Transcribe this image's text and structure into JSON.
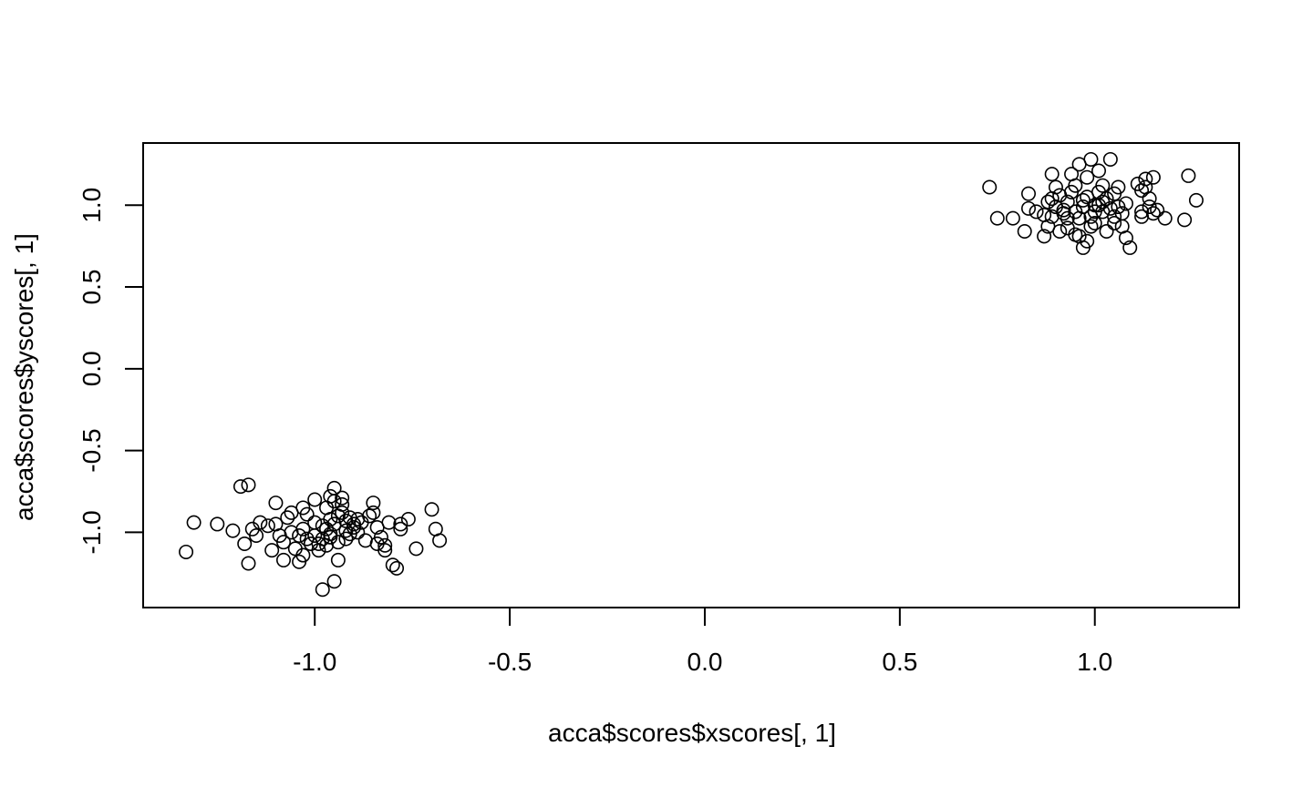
{
  "chart_data": {
    "type": "scatter",
    "title": "",
    "xlabel": "acca$scores$xscores[, 1]",
    "ylabel": "acca$scores$yscores[, 1]",
    "xlim": [
      -1.44,
      1.37
    ],
    "ylim": [
      -1.46,
      1.38
    ],
    "xticks": [
      -1.0,
      -0.5,
      0.0,
      0.5,
      1.0
    ],
    "xtick_labels": [
      "-1.0",
      "-0.5",
      "0.0",
      "0.5",
      "1.0"
    ],
    "yticks": [
      -1.0,
      -0.5,
      0.0,
      0.5,
      1.0
    ],
    "ytick_labels": [
      "-1.0",
      "-0.5",
      "0.0",
      "0.5",
      "1.0"
    ],
    "grid": false,
    "legend": "none",
    "marker": "open-circle",
    "color": "#000000",
    "series": [
      {
        "points": [
          [
            -1.33,
            -1.12
          ],
          [
            -1.31,
            -0.94
          ],
          [
            -1.25,
            -0.95
          ],
          [
            -1.21,
            -0.99
          ],
          [
            -1.19,
            -0.72
          ],
          [
            -1.17,
            -0.71
          ],
          [
            -1.18,
            -1.07
          ],
          [
            -1.17,
            -1.19
          ],
          [
            -1.16,
            -0.98
          ],
          [
            -1.14,
            -0.94
          ],
          [
            -1.15,
            -1.02
          ],
          [
            -1.12,
            -0.96
          ],
          [
            -1.11,
            -1.11
          ],
          [
            -1.1,
            -0.82
          ],
          [
            -1.1,
            -0.95
          ],
          [
            -1.09,
            -1.02
          ],
          [
            -1.08,
            -1.06
          ],
          [
            -1.08,
            -1.17
          ],
          [
            -1.07,
            -0.91
          ],
          [
            -1.06,
            -1.0
          ],
          [
            -1.06,
            -0.88
          ],
          [
            -1.05,
            -1.1
          ],
          [
            -1.04,
            -1.18
          ],
          [
            -1.03,
            -0.85
          ],
          [
            -1.03,
            -0.98
          ],
          [
            -1.02,
            -1.04
          ],
          [
            -1.03,
            -1.14
          ],
          [
            -1.02,
            -0.89
          ],
          [
            -1.01,
            -1.07
          ],
          [
            -1.0,
            -0.8
          ],
          [
            -1.0,
            -0.94
          ],
          [
            -1.0,
            -1.02
          ],
          [
            -0.99,
            -1.07
          ],
          [
            -0.99,
            -1.11
          ],
          [
            -0.98,
            -1.04
          ],
          [
            -0.98,
            -1.35
          ],
          [
            -0.97,
            -0.85
          ],
          [
            -0.97,
            -0.98
          ],
          [
            -0.97,
            -1.08
          ],
          [
            -0.96,
            -0.78
          ],
          [
            -0.96,
            -0.92
          ],
          [
            -0.96,
            -1.03
          ],
          [
            -0.95,
            -0.73
          ],
          [
            -0.95,
            -0.81
          ],
          [
            -0.95,
            -0.95
          ],
          [
            -0.95,
            -1.3
          ],
          [
            -0.94,
            -1.06
          ],
          [
            -0.94,
            -1.17
          ],
          [
            -0.93,
            -0.83
          ],
          [
            -0.93,
            -0.88
          ],
          [
            -0.93,
            -0.79
          ],
          [
            -0.92,
            -0.99
          ],
          [
            -0.92,
            -0.93
          ],
          [
            -0.92,
            -1.04
          ],
          [
            -0.91,
            -0.91
          ],
          [
            -0.91,
            -1.01
          ],
          [
            -0.9,
            -0.95
          ],
          [
            -0.9,
            -0.97
          ],
          [
            -0.89,
            -0.92
          ],
          [
            -0.89,
            -1.0
          ],
          [
            -0.88,
            -0.94
          ],
          [
            -0.87,
            -1.05
          ],
          [
            -0.86,
            -0.9
          ],
          [
            -0.85,
            -0.88
          ],
          [
            -0.85,
            -0.82
          ],
          [
            -0.84,
            -0.97
          ],
          [
            -0.84,
            -1.07
          ],
          [
            -0.83,
            -1.03
          ],
          [
            -0.82,
            -1.11
          ],
          [
            -0.82,
            -1.08
          ],
          [
            -0.81,
            -0.94
          ],
          [
            -0.8,
            -1.2
          ],
          [
            -0.79,
            -1.22
          ],
          [
            -0.78,
            -0.98
          ],
          [
            -0.78,
            -0.95
          ],
          [
            -0.76,
            -0.92
          ],
          [
            -0.74,
            -1.1
          ],
          [
            -0.7,
            -0.86
          ],
          [
            -0.69,
            -0.98
          ],
          [
            -0.68,
            -1.05
          ],
          [
            -0.94,
            -0.9
          ],
          [
            -0.98,
            -0.96
          ],
          [
            -1.04,
            -1.02
          ],
          [
            -0.96,
            -1.01
          ]
        ]
      },
      {
        "points": [
          [
            0.73,
            1.11
          ],
          [
            0.75,
            0.92
          ],
          [
            0.79,
            0.92
          ],
          [
            0.82,
            0.84
          ],
          [
            0.83,
            0.98
          ],
          [
            0.83,
            1.07
          ],
          [
            0.85,
            0.96
          ],
          [
            0.87,
            0.81
          ],
          [
            0.87,
            0.94
          ],
          [
            0.88,
            1.02
          ],
          [
            0.88,
            0.87
          ],
          [
            0.89,
            1.19
          ],
          [
            0.89,
            1.04
          ],
          [
            0.89,
            0.93
          ],
          [
            0.9,
            1.11
          ],
          [
            0.9,
            0.99
          ],
          [
            0.91,
            0.84
          ],
          [
            0.91,
            1.06
          ],
          [
            0.92,
            0.95
          ],
          [
            0.93,
            1.02
          ],
          [
            0.93,
            0.92
          ],
          [
            0.93,
            0.86
          ],
          [
            0.94,
            1.08
          ],
          [
            0.94,
            1.19
          ],
          [
            0.95,
            0.82
          ],
          [
            0.95,
            0.96
          ],
          [
            0.95,
            1.12
          ],
          [
            0.96,
            0.81
          ],
          [
            0.96,
            0.92
          ],
          [
            0.96,
            1.25
          ],
          [
            0.97,
            1.03
          ],
          [
            0.97,
            0.74
          ],
          [
            0.97,
            0.99
          ],
          [
            0.98,
            1.05
          ],
          [
            0.98,
            0.78
          ],
          [
            0.98,
            1.17
          ],
          [
            0.99,
            0.93
          ],
          [
            0.99,
            0.87
          ],
          [
            0.99,
            1.28
          ],
          [
            1.0,
            1.0
          ],
          [
            1.0,
            0.96
          ],
          [
            1.0,
            0.89
          ],
          [
            1.01,
            1.21
          ],
          [
            1.01,
            1.08
          ],
          [
            1.02,
            1.02
          ],
          [
            1.02,
            0.96
          ],
          [
            1.02,
            1.12
          ],
          [
            1.03,
            1.04
          ],
          [
            1.03,
            0.84
          ],
          [
            1.04,
            0.98
          ],
          [
            1.04,
            1.28
          ],
          [
            1.05,
            0.93
          ],
          [
            1.05,
            1.07
          ],
          [
            1.05,
            0.89
          ],
          [
            1.06,
            1.11
          ],
          [
            1.06,
            0.99
          ],
          [
            1.07,
            0.95
          ],
          [
            1.07,
            0.87
          ],
          [
            1.08,
            1.01
          ],
          [
            1.08,
            0.8
          ],
          [
            1.09,
            0.74
          ],
          [
            1.11,
            1.13
          ],
          [
            1.12,
            0.96
          ],
          [
            1.12,
            0.93
          ],
          [
            1.12,
            1.09
          ],
          [
            1.13,
            1.16
          ],
          [
            1.13,
            1.11
          ],
          [
            1.14,
            1.04
          ],
          [
            1.14,
            0.99
          ],
          [
            1.15,
            1.17
          ],
          [
            1.15,
            0.95
          ],
          [
            1.16,
            0.97
          ],
          [
            1.18,
            0.92
          ],
          [
            1.23,
            0.91
          ],
          [
            1.24,
            1.18
          ],
          [
            1.26,
            1.03
          ],
          [
            0.92,
            0.97
          ],
          [
            1.01,
            1.0
          ]
        ]
      }
    ]
  }
}
